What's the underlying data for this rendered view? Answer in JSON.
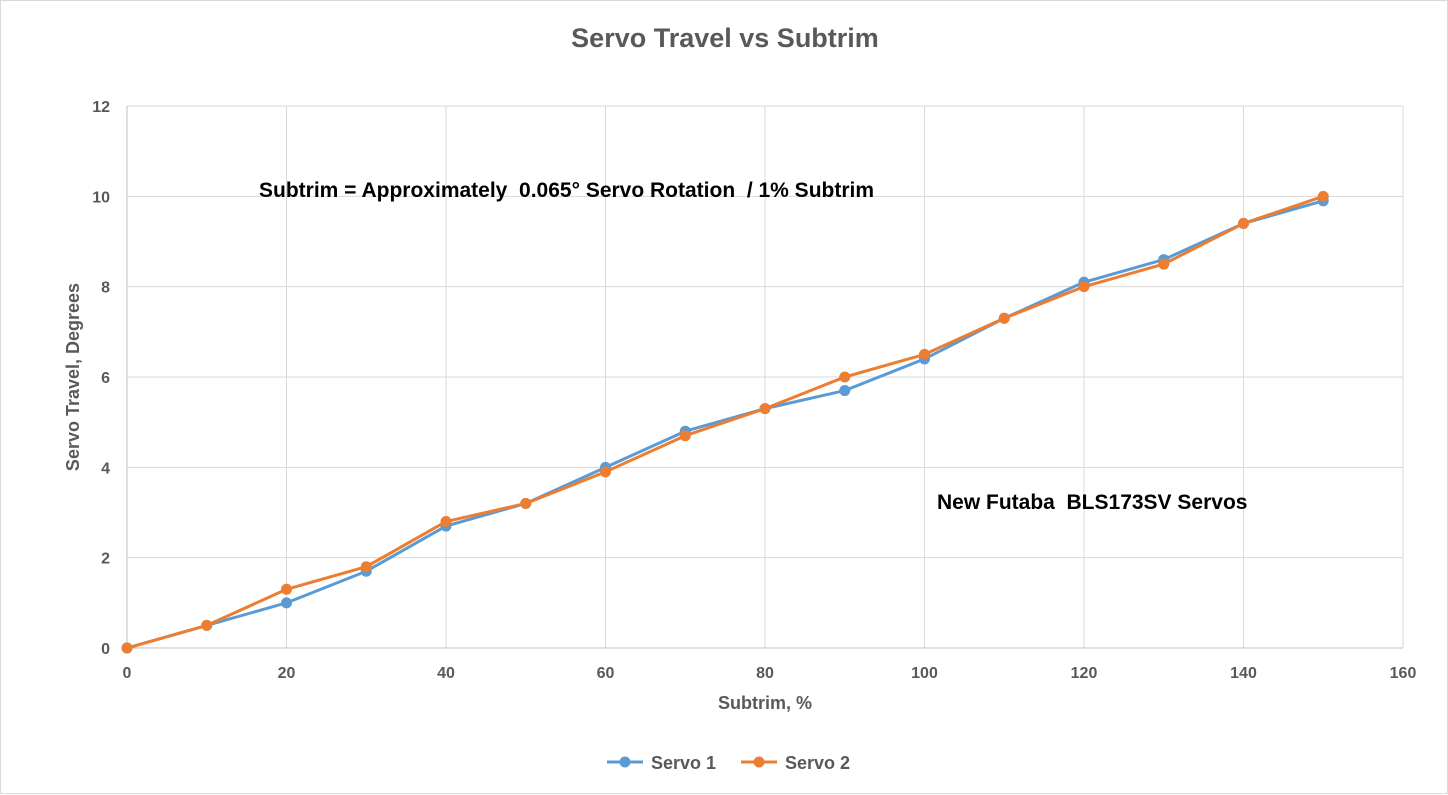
{
  "chart_data": {
    "type": "line",
    "title": "Servo Travel vs Subtrim",
    "xlabel": "Subtrim, %",
    "ylabel": "Servo Travel, Degrees",
    "xlim": [
      0,
      160
    ],
    "ylim": [
      0,
      12
    ],
    "x_ticks": [
      0,
      20,
      40,
      60,
      80,
      100,
      120,
      140,
      160
    ],
    "y_ticks": [
      0,
      2,
      4,
      6,
      8,
      10,
      12
    ],
    "grid": true,
    "legend_position": "bottom",
    "annotations": [
      "Subtrim = Approximately  0.065° Servo Rotation  / 1% Subtrim",
      "New Futaba  BLS173SV Servos"
    ],
    "x": [
      0,
      10,
      20,
      30,
      40,
      50,
      60,
      70,
      80,
      90,
      100,
      110,
      120,
      130,
      140,
      150
    ],
    "series": [
      {
        "name": "Servo 1",
        "color": "#5b9bd5",
        "values": [
          0,
          0.5,
          1.0,
          1.7,
          2.7,
          3.2,
          4.0,
          4.8,
          5.3,
          5.7,
          6.4,
          7.3,
          8.1,
          8.6,
          9.4,
          9.9
        ]
      },
      {
        "name": "Servo 2",
        "color": "#ed7d31",
        "values": [
          0,
          0.5,
          1.3,
          1.8,
          2.8,
          3.2,
          3.9,
          4.7,
          5.3,
          6.0,
          6.5,
          7.3,
          8.0,
          8.5,
          9.4,
          10.0
        ]
      }
    ]
  }
}
